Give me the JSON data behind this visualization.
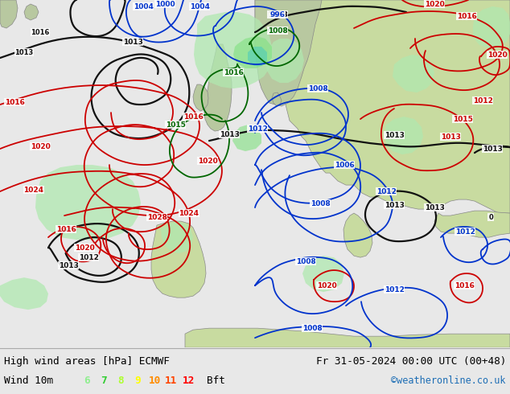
{
  "title_left": "High wind areas [hPa] ECMWF",
  "title_right": "Fr 31-05-2024 00:00 UTC (00+48)",
  "subtitle_label": "Wind 10m",
  "bft_numbers": [
    "6",
    "7",
    "8",
    "9",
    "10",
    "11",
    "12"
  ],
  "bft_colors": [
    "#90ee90",
    "#32cd32",
    "#adff2f",
    "#ffff00",
    "#ff8c00",
    "#ff4500",
    "#ff0000"
  ],
  "bft_suffix": "Bft",
  "copyright": "©weatheronline.co.uk",
  "copyright_color": "#1e6eb5",
  "ocean_color": "#e8e8e8",
  "land_color": "#c8dba0",
  "land_color2": "#b8c8a0",
  "bg_bottom_color": "#e8e8e8",
  "wind_green_light": "#b0e8b0",
  "wind_green_bright": "#80e080",
  "wind_teal": "#40c8c0",
  "figsize": [
    6.34,
    4.9
  ],
  "dpi": 100
}
